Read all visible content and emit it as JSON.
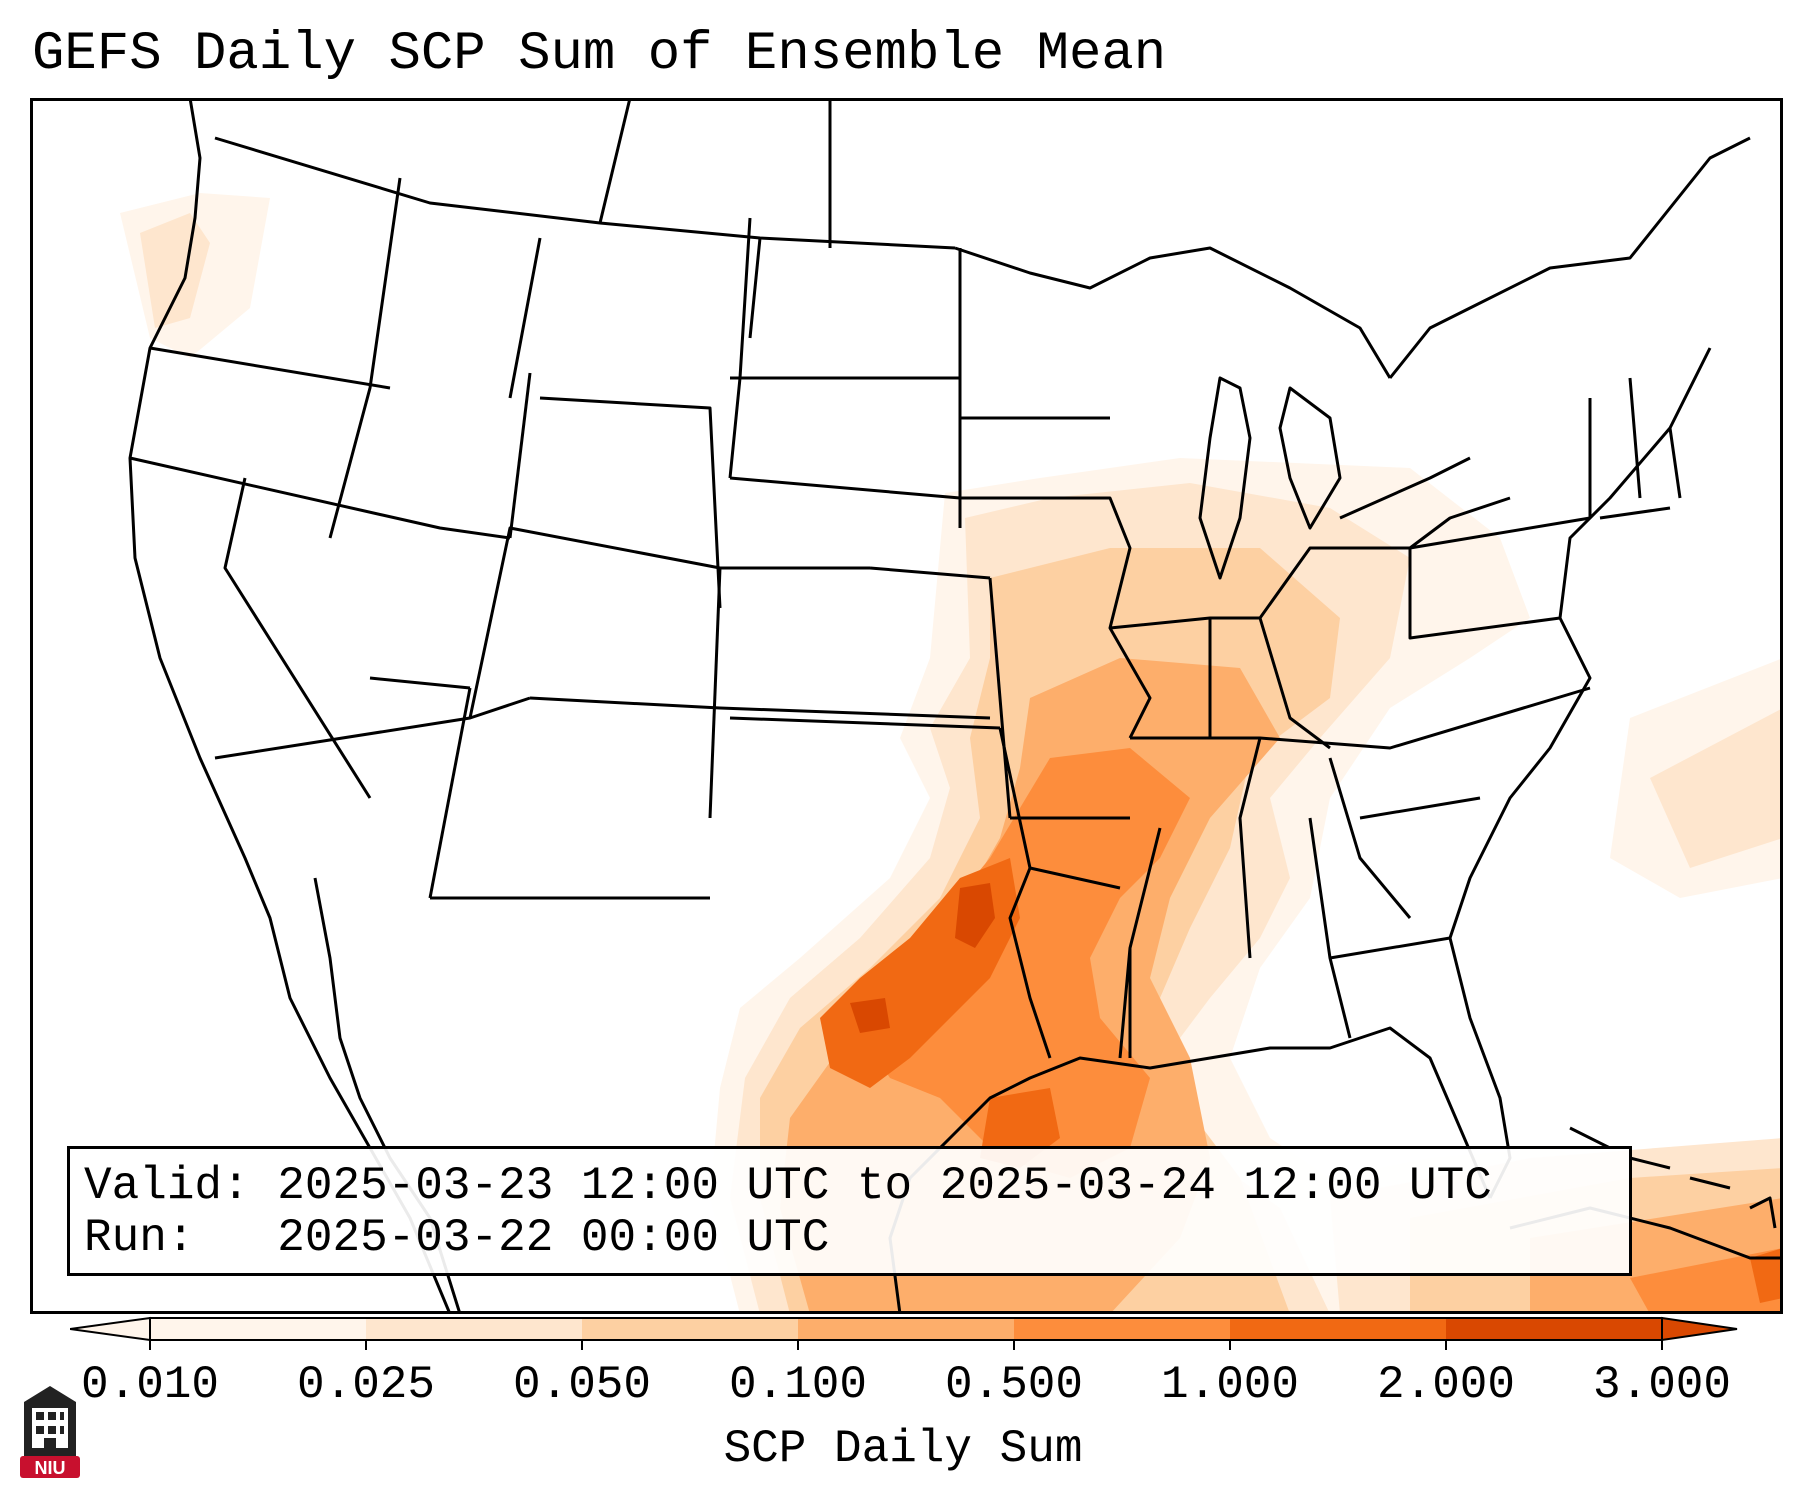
{
  "title": "GEFS Daily SCP Sum of Ensemble Mean",
  "info": {
    "valid_label": "Valid:",
    "valid_range": "2025-03-23 12:00 UTC to 2025-03-24 12:00 UTC",
    "run_label": "Run:",
    "run_time": "2025-03-22 00:00 UTC"
  },
  "colorbar": {
    "label": "SCP Daily Sum",
    "ticks": [
      "0.010",
      "0.025",
      "0.050",
      "0.100",
      "0.500",
      "1.000",
      "2.000",
      "3.000"
    ],
    "colors": [
      "#fff5eb",
      "#fee6ce",
      "#fdd0a2",
      "#fdae6b",
      "#fd8d3c",
      "#f16913",
      "#d94801"
    ],
    "extend": "both"
  },
  "logo": {
    "text": "NIU",
    "accent": "#c8102e"
  }
}
